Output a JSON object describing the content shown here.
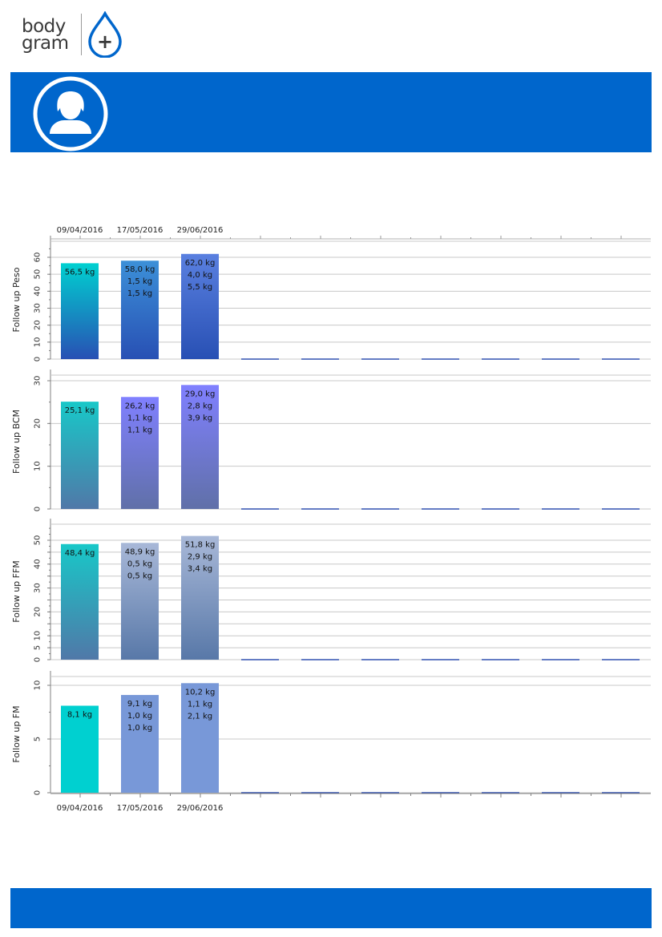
{
  "logo": {
    "word1": "body",
    "word2": "gram",
    "symbol": "+",
    "icon": "water-drop-plus-icon"
  },
  "header": {
    "avatar_icon": "female-user-avatar-icon",
    "background_color": "#0066cc"
  },
  "footer": {
    "background_color": "#0066cc"
  },
  "chart_data": [
    {
      "type": "bar",
      "ylabel": "Follow up Peso",
      "categories": [
        "09/04/2016",
        "17/05/2016",
        "29/06/2016",
        "",
        "",
        "",
        "",
        "",
        "",
        ""
      ],
      "values": [
        56.5,
        58.0,
        62.0,
        0,
        0,
        0,
        0,
        0,
        0,
        0
      ],
      "data_labels": [
        [
          "56,5 kg"
        ],
        [
          "58,0 kg",
          "1,5 kg",
          "1,5 kg"
        ],
        [
          "62,0 kg",
          "4,0 kg",
          "5,5 kg"
        ]
      ],
      "yticks": [
        0,
        10,
        20,
        30,
        40,
        50,
        60
      ],
      "ylim": [
        0,
        65
      ],
      "grid": true,
      "bar_colors": [
        [
          "#00d0d0",
          "#2850b4"
        ],
        [
          "#3c90d8",
          "#2850b4"
        ],
        [
          "#5a80e0",
          "#2850b4"
        ]
      ]
    },
    {
      "type": "bar",
      "ylabel": "Follow up BCM",
      "categories": [
        "09/04/2016",
        "17/05/2016",
        "29/06/2016",
        "",
        "",
        "",
        "",
        "",
        "",
        ""
      ],
      "values": [
        25.1,
        26.2,
        29.0,
        0,
        0,
        0,
        0,
        0,
        0,
        0
      ],
      "data_labels": [
        [
          "25,1 kg"
        ],
        [
          "26,2 kg",
          "1,1 kg",
          "1,1 kg"
        ],
        [
          "29,0 kg",
          "2,8 kg",
          "3,9 kg"
        ]
      ],
      "yticks": [
        0,
        10,
        20,
        30
      ],
      "ylim": [
        0,
        30
      ],
      "grid": true,
      "bar_colors": [
        [
          "#18c8c8",
          "#5078a8"
        ],
        [
          "#8080ff",
          "#6070a8"
        ],
        [
          "#8080ff",
          "#6070a8"
        ]
      ]
    },
    {
      "type": "bar",
      "ylabel": "Follow up FFM",
      "categories": [
        "09/04/2016",
        "17/05/2016",
        "29/06/2016",
        "",
        "",
        "",
        "",
        "",
        "",
        ""
      ],
      "values": [
        48.4,
        48.9,
        51.8,
        0,
        0,
        0,
        0,
        0,
        0,
        0
      ],
      "data_labels": [
        [
          "48,4 kg"
        ],
        [
          "48,9 kg",
          "0,5 kg",
          "0,5 kg"
        ],
        [
          "51,8 kg",
          "2,9 kg",
          "3,4 kg"
        ]
      ],
      "yticks": [
        0,
        5,
        10,
        15,
        20,
        25,
        30,
        35,
        40,
        45,
        50
      ],
      "ytick_labels": [
        "0",
        "5",
        "10",
        "",
        "20",
        "",
        "30",
        "",
        "40",
        "",
        "50"
      ],
      "ylim": [
        0,
        55
      ],
      "grid": true,
      "bar_colors": [
        [
          "#18c8c8",
          "#5078a8"
        ],
        [
          "#a8b8d8",
          "#5878a8"
        ],
        [
          "#a8b8d8",
          "#5878a8"
        ]
      ]
    },
    {
      "type": "bar",
      "ylabel": "Follow up FM",
      "categories": [
        "09/04/2016",
        "17/05/2016",
        "29/06/2016",
        "",
        "",
        "",
        "",
        "",
        "",
        ""
      ],
      "values": [
        8.1,
        9.1,
        10.2,
        0,
        0,
        0,
        0,
        0,
        0,
        0
      ],
      "data_labels": [
        [
          "8,1 kg"
        ],
        [
          "9,1 kg",
          "1,0 kg",
          "1,0 kg"
        ],
        [
          "10,2 kg",
          "1,1 kg",
          "2,1 kg"
        ]
      ],
      "yticks": [
        0,
        5,
        10
      ],
      "ylim": [
        0,
        10.5
      ],
      "grid": true,
      "bar_colors": [
        [
          "#00d0d0",
          "#00d0d0"
        ],
        [
          "#7898d8",
          "#7898d8"
        ],
        [
          "#7898d8",
          "#7898d8"
        ]
      ]
    }
  ],
  "date_axis": {
    "top": [
      "09/04/2016",
      "17/05/2016",
      "29/06/2016"
    ],
    "bottom": [
      "09/04/2016",
      "17/05/2016",
      "29/06/2016"
    ]
  }
}
